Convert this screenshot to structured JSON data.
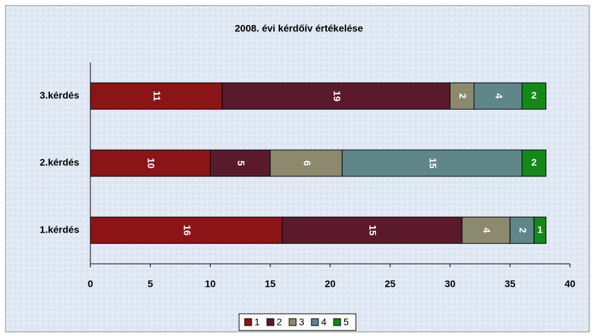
{
  "chart_data": {
    "type": "bar",
    "orientation": "horizontal",
    "stacked": true,
    "title": "2008. évi kérdőív értékelése",
    "categories": [
      "1.kérdés",
      "2.kérdés",
      "3.kérdés"
    ],
    "series": [
      {
        "name": "1",
        "color": "#8b1416",
        "values": [
          16,
          10,
          11
        ]
      },
      {
        "name": "2",
        "color": "#5a1a2c",
        "values": [
          15,
          5,
          19
        ]
      },
      {
        "name": "3",
        "color": "#8c8a6c",
        "values": [
          4,
          6,
          2
        ]
      },
      {
        "name": "4",
        "color": "#5f8688",
        "values": [
          2,
          15,
          4
        ]
      },
      {
        "name": "5",
        "color": "#138a17",
        "values": [
          1,
          2,
          2
        ]
      }
    ],
    "xlim": [
      0,
      40
    ],
    "xticks": [
      0,
      5,
      10,
      15,
      20,
      25,
      30,
      35,
      40
    ],
    "grid": false,
    "legend": "bottom"
  }
}
